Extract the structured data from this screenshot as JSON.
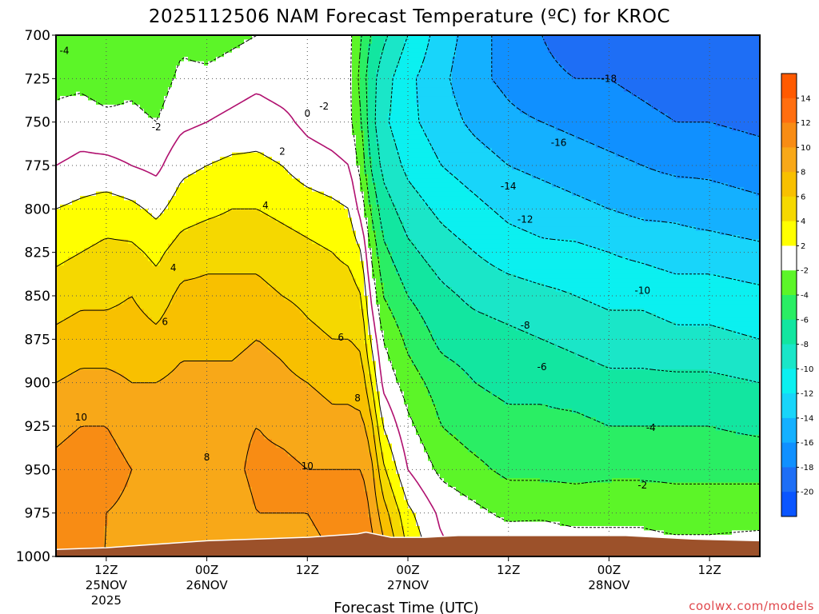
{
  "title": "2025112506 NAM Forecast Temperature (ºC) for KROC",
  "credit": "coolwx.com/models",
  "colors": {
    "terrain": "#9c512a",
    "freezing_line": "#b0106f",
    "bins": [
      {
        "lo": -24,
        "hi": -20,
        "color": "#0a55ff"
      },
      {
        "lo": -20,
        "hi": -18,
        "color": "#1e6ef5"
      },
      {
        "lo": -18,
        "hi": -16,
        "color": "#1090ff"
      },
      {
        "lo": -16,
        "hi": -14,
        "color": "#14b0ff"
      },
      {
        "lo": -14,
        "hi": -12,
        "color": "#18d5fa"
      },
      {
        "lo": -12,
        "hi": -10,
        "color": "#0bf0f0"
      },
      {
        "lo": -10,
        "hi": -8,
        "color": "#1ae6c8"
      },
      {
        "lo": -8,
        "hi": -6,
        "color": "#12e6a0"
      },
      {
        "lo": -6,
        "hi": -4,
        "color": "#2aee64"
      },
      {
        "lo": -4,
        "hi": -2,
        "color": "#5cf528"
      },
      {
        "lo": -2,
        "hi": 2,
        "color": "#ffffff"
      },
      {
        "lo": 2,
        "hi": 4,
        "color": "#ffff00"
      },
      {
        "lo": 4,
        "hi": 6,
        "color": "#f5d800"
      },
      {
        "lo": 6,
        "hi": 8,
        "color": "#f8c000"
      },
      {
        "lo": 8,
        "hi": 10,
        "color": "#f8a818"
      },
      {
        "lo": 10,
        "hi": 12,
        "color": "#f88c14"
      },
      {
        "lo": 12,
        "hi": 14,
        "color": "#ff6e10"
      },
      {
        "lo": 14,
        "hi": 16,
        "color": "#ff5a00"
      }
    ]
  },
  "chart_data": {
    "type": "heatmap",
    "title": "2025112506 NAM Forecast Temperature (ºC) for KROC",
    "xlabel": "Forecast Time (UTC)",
    "ylabel": "",
    "x_axis": {
      "unit": "forecast hour from 2025-11-25 06Z",
      "range": [
        0,
        84
      ],
      "ticks": [
        {
          "x": 6,
          "label": "12Z",
          "sub1": "25NOV",
          "sub2": "2025"
        },
        {
          "x": 18,
          "label": "00Z",
          "sub1": "26NOV",
          "sub2": ""
        },
        {
          "x": 30,
          "label": "12Z",
          "sub1": "",
          "sub2": ""
        },
        {
          "x": 42,
          "label": "00Z",
          "sub1": "27NOV",
          "sub2": ""
        },
        {
          "x": 54,
          "label": "12Z",
          "sub1": "",
          "sub2": ""
        },
        {
          "x": 66,
          "label": "00Z",
          "sub1": "28NOV",
          "sub2": ""
        },
        {
          "x": 78,
          "label": "12Z",
          "sub1": "",
          "sub2": ""
        }
      ]
    },
    "y_axis": {
      "unit": "hPa",
      "range": [
        1000,
        700
      ],
      "ticks": [
        700,
        725,
        750,
        775,
        800,
        825,
        850,
        875,
        900,
        925,
        950,
        975,
        1000
      ]
    },
    "grid": true,
    "colorbar_labels": [
      14,
      12,
      10,
      8,
      6,
      4,
      2,
      -2,
      -4,
      -6,
      -8,
      -10,
      -12,
      -14,
      -16,
      -18,
      -20
    ],
    "colorbar_position": "right",
    "profiles": [
      {
        "t": 0,
        "T": [
          -3,
          -2.5,
          -1.5,
          0,
          2,
          3.5,
          5,
          6.5,
          8,
          9.5,
          10.5,
          10,
          10
        ]
      },
      {
        "t": 3,
        "T": [
          -3.5,
          -2.5,
          -1,
          0.5,
          2.5,
          4,
          5.5,
          7,
          8.5,
          10,
          11,
          10.5,
          10
        ]
      },
      {
        "t": 6,
        "T": [
          -3.5,
          -3,
          -1.5,
          0.5,
          3,
          4.5,
          5.5,
          7,
          8.5,
          10,
          11,
          10,
          10
        ]
      },
      {
        "t": 9,
        "T": [
          -3,
          -2.5,
          -1.5,
          0,
          2.5,
          4.5,
          6,
          7,
          8,
          9,
          10,
          9.5,
          9.5
        ]
      },
      {
        "t": 12,
        "T": [
          -3.5,
          -3,
          -2,
          -0.5,
          1.5,
          3.5,
          5,
          6.5,
          8,
          9,
          9.5,
          9,
          9.5
        ]
      },
      {
        "t": 15,
        "T": [
          -2.5,
          -1.5,
          -0.5,
          1.5,
          3,
          5,
          6.5,
          7.5,
          8.5,
          9.5,
          9.5,
          9,
          9
        ]
      },
      {
        "t": 18,
        "T": [
          -3,
          -1.5,
          0,
          2,
          3.5,
          5.5,
          6.5,
          7.5,
          8.5,
          9,
          8.5,
          8,
          8
        ]
      },
      {
        "t": 21,
        "T": [
          -2.5,
          -1,
          0.5,
          2.5,
          4,
          5.5,
          6.5,
          7.5,
          8.5,
          9.5,
          9.5,
          9,
          9
        ]
      },
      {
        "t": 24,
        "T": [
          -2,
          -0.5,
          1,
          2.5,
          4,
          5.5,
          6.5,
          8,
          9,
          10,
          10.5,
          10,
          9.5
        ]
      },
      {
        "t": 27,
        "T": [
          -1.5,
          -1,
          0.5,
          2,
          3.5,
          5,
          6,
          7.5,
          8.5,
          9.5,
          10.5,
          10,
          9.5
        ]
      },
      {
        "t": 30,
        "T": [
          -1.5,
          -1,
          -0.5,
          1,
          3,
          4.5,
          5.5,
          6.5,
          8,
          9,
          10,
          10,
          9.5
        ]
      },
      {
        "t": 33,
        "T": [
          -1,
          -1,
          -1,
          0.5,
          2.5,
          4,
          5,
          6,
          7.5,
          8.5,
          10,
          10.5,
          10
        ]
      },
      {
        "t": 35,
        "T": [
          -1.5,
          -1.5,
          -1.5,
          0,
          2,
          3.5,
          5,
          6,
          7.5,
          8.5,
          10,
          11,
          10.5
        ]
      },
      {
        "t": 36.5,
        "T": [
          -4,
          -5,
          -4,
          -3,
          -1,
          2,
          4,
          5.5,
          7,
          8.5,
          10,
          11,
          11
        ]
      },
      {
        "t": 37.5,
        "T": [
          -6,
          -7,
          -7,
          -6,
          -4,
          -2,
          0,
          2,
          4.5,
          7,
          9,
          10,
          11
        ]
      },
      {
        "t": 39,
        "T": [
          -7.5,
          -9,
          -9.5,
          -8.5,
          -7,
          -5.5,
          -4,
          -2,
          -0.5,
          2,
          4.5,
          7,
          9
        ]
      },
      {
        "t": 42,
        "T": [
          -10,
          -11.5,
          -11.5,
          -10.5,
          -9,
          -7.5,
          -6,
          -4.5,
          -3,
          -1.5,
          0,
          2.5,
          4
        ]
      },
      {
        "t": 46,
        "T": [
          -13,
          -13.5,
          -13,
          -12,
          -10.5,
          -9,
          -7.5,
          -6.5,
          -5,
          -4,
          -2.5,
          -0.5,
          0.5
        ]
      },
      {
        "t": 50,
        "T": [
          -15,
          -15.5,
          -14.5,
          -13,
          -11.5,
          -10,
          -8.5,
          -7,
          -6,
          -5,
          -3.5,
          -1.5,
          0
        ]
      },
      {
        "t": 54,
        "T": [
          -17,
          -16.5,
          -15.5,
          -14,
          -12.5,
          -11,
          -9,
          -7.5,
          -6.5,
          -5.5,
          -4.5,
          -2.5,
          0
        ]
      },
      {
        "t": 58,
        "T": [
          -18,
          -17.5,
          -16,
          -14.5,
          -13,
          -11.5,
          -9.5,
          -8,
          -6.5,
          -5.5,
          -4.5,
          -2.5,
          0.5
        ]
      },
      {
        "t": 62,
        "T": [
          -19,
          -18,
          -16.5,
          -15,
          -13.5,
          -11.5,
          -10,
          -8.5,
          -7,
          -5.5,
          -4.5,
          -3,
          0
        ]
      },
      {
        "t": 66,
        "T": [
          -18.5,
          -18,
          -17,
          -15.5,
          -14,
          -12,
          -10.5,
          -9,
          -7.5,
          -6,
          -4.5,
          -2.5,
          -1
        ]
      },
      {
        "t": 70,
        "T": [
          -19.5,
          -18.5,
          -17.5,
          -16,
          -14.5,
          -12.5,
          -10.5,
          -9,
          -7.5,
          -6,
          -4.5,
          -2.5,
          -1
        ]
      },
      {
        "t": 74,
        "T": [
          -19.5,
          -19,
          -18,
          -16.5,
          -14.5,
          -13,
          -11,
          -9.5,
          -7.5,
          -6,
          -4.5,
          -3,
          -1
        ]
      },
      {
        "t": 78,
        "T": [
          -20,
          -19,
          -18,
          -16.5,
          -15,
          -13,
          -11,
          -9.5,
          -7.5,
          -6,
          -4.5,
          -3,
          -1
        ]
      },
      {
        "t": 84,
        "T": [
          -20,
          -19.5,
          -18.5,
          -17,
          -15.5,
          -13.5,
          -11.5,
          -10,
          -8,
          -6.5,
          -4.5,
          -3,
          -0.5
        ]
      }
    ],
    "surface_pressure": [
      {
        "t": 0,
        "p": 996
      },
      {
        "t": 6,
        "p": 995
      },
      {
        "t": 12,
        "p": 993
      },
      {
        "t": 18,
        "p": 991
      },
      {
        "t": 24,
        "p": 990
      },
      {
        "t": 30,
        "p": 989
      },
      {
        "t": 36,
        "p": 987
      },
      {
        "t": 37,
        "p": 986
      },
      {
        "t": 40,
        "p": 989
      },
      {
        "t": 44,
        "p": 989
      },
      {
        "t": 48,
        "p": 988
      },
      {
        "t": 60,
        "p": 988
      },
      {
        "t": 68,
        "p": 988
      },
      {
        "t": 76,
        "p": 990
      },
      {
        "t": 84,
        "p": 991
      }
    ],
    "contour_labels": [
      {
        "label": "-4",
        "t": 1,
        "p": 709
      },
      {
        "label": "-2",
        "t": 12,
        "p": 753
      },
      {
        "label": "-2",
        "t": 32,
        "p": 741
      },
      {
        "label": "0",
        "t": 30,
        "p": 745
      },
      {
        "label": "2",
        "t": 27,
        "p": 767
      },
      {
        "label": "4",
        "t": 25,
        "p": 798
      },
      {
        "label": "4",
        "t": 14,
        "p": 834
      },
      {
        "label": "6",
        "t": 13,
        "p": 865
      },
      {
        "label": "6",
        "t": 34,
        "p": 874
      },
      {
        "label": "8",
        "t": 36,
        "p": 909
      },
      {
        "label": "8",
        "t": 18,
        "p": 943
      },
      {
        "label": "10",
        "t": 3,
        "p": 920
      },
      {
        "label": "10",
        "t": 30,
        "p": 948
      },
      {
        "label": "-18",
        "t": 66,
        "p": 725
      },
      {
        "label": "-16",
        "t": 60,
        "p": 762
      },
      {
        "label": "-14",
        "t": 54,
        "p": 787
      },
      {
        "label": "-12",
        "t": 56,
        "p": 806
      },
      {
        "label": "-10",
        "t": 70,
        "p": 847
      },
      {
        "label": "-8",
        "t": 56,
        "p": 867
      },
      {
        "label": "-6",
        "t": 58,
        "p": 891
      },
      {
        "label": "-4",
        "t": 71,
        "p": 926
      },
      {
        "label": "-2",
        "t": 70,
        "p": 959
      }
    ]
  }
}
